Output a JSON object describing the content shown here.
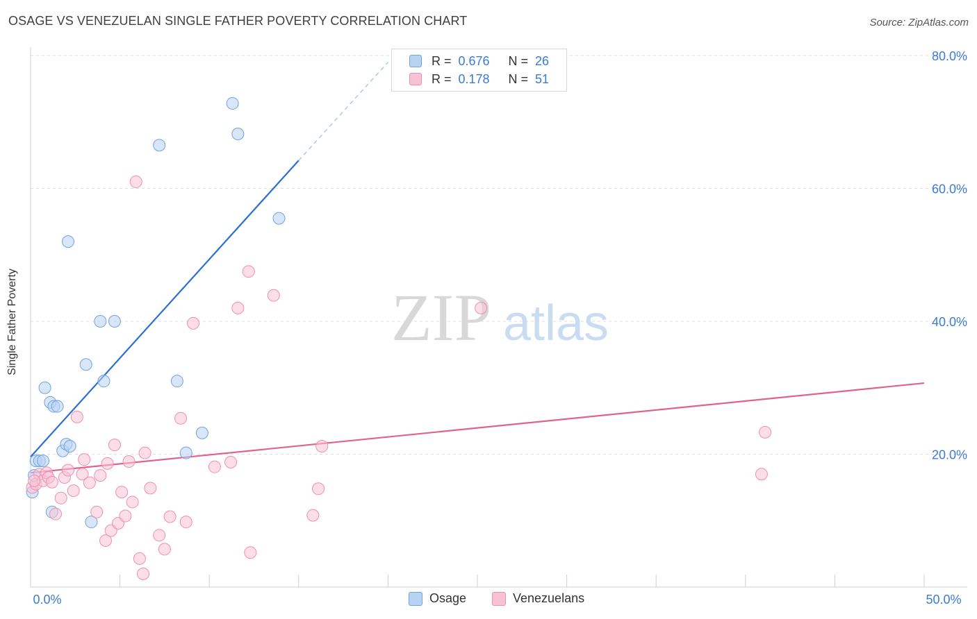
{
  "header": {
    "title": "OSAGE VS VENEZUELAN SINGLE FATHER POVERTY CORRELATION CHART",
    "source": "Source: ZipAtlas.com"
  },
  "watermark": {
    "zip": "ZIP",
    "atlas": "atlas"
  },
  "legend": {
    "r_label": "R =",
    "n_label": "N =",
    "rows": [
      {
        "r": "0.676",
        "n": "26",
        "color": "#6fa3e0"
      },
      {
        "r": "0.178",
        "n": "51",
        "color": "#ef8fb0"
      }
    ]
  },
  "bottom_legend": [
    "Osage",
    "Venezuelans"
  ],
  "chart_data": {
    "type": "scatter",
    "title": "OSAGE VS VENEZUELAN SINGLE FATHER POVERTY CORRELATION CHART",
    "xlabel": "",
    "ylabel": "Single Father Poverty",
    "xlim": [
      0,
      50
    ],
    "ylim": [
      0,
      80
    ],
    "x_tick_labels": [
      "0.0%",
      "50.0%"
    ],
    "y_tick_labels": [
      "20.0%",
      "40.0%",
      "60.0%",
      "80.0%"
    ],
    "y_ticks": [
      20,
      40,
      60,
      80
    ],
    "grid": true,
    "legend_position": "top-center",
    "series": [
      {
        "name": "Osage",
        "color": "#6fa3e0",
        "fill": "#b8d2f2",
        "points": [
          [
            0.1,
            14.3
          ],
          [
            0.2,
            16.8
          ],
          [
            0.3,
            19.0
          ],
          [
            0.5,
            19.0
          ],
          [
            0.7,
            19.0
          ],
          [
            0.8,
            30.0
          ],
          [
            1.1,
            27.8
          ],
          [
            1.3,
            27.2
          ],
          [
            1.5,
            27.2
          ],
          [
            1.2,
            11.3
          ],
          [
            1.8,
            20.5
          ],
          [
            2.0,
            21.5
          ],
          [
            2.2,
            21.2
          ],
          [
            2.1,
            52.0
          ],
          [
            3.1,
            33.5
          ],
          [
            3.4,
            9.8
          ],
          [
            3.9,
            40.0
          ],
          [
            4.1,
            31.0
          ],
          [
            4.7,
            40.0
          ],
          [
            7.2,
            66.5
          ],
          [
            8.2,
            31.0
          ],
          [
            8.7,
            20.2
          ],
          [
            9.6,
            23.2
          ],
          [
            11.3,
            72.8
          ],
          [
            11.6,
            68.2
          ],
          [
            13.9,
            55.5
          ]
        ],
        "trendline": {
          "x": [
            0,
            15
          ],
          "y": [
            19.6,
            64.2
          ],
          "dashed_to": {
            "x": 20,
            "y": 79.0
          }
        }
      },
      {
        "name": "Venezuelans",
        "color": "#ef8fb0",
        "fill": "#f7c3d4",
        "points": [
          [
            0.1,
            15.0
          ],
          [
            0.3,
            15.5
          ],
          [
            0.5,
            17.0
          ],
          [
            0.7,
            16.0
          ],
          [
            0.9,
            17.2
          ],
          [
            1.0,
            16.5
          ],
          [
            1.2,
            15.8
          ],
          [
            1.4,
            11.0
          ],
          [
            1.7,
            13.4
          ],
          [
            1.9,
            16.5
          ],
          [
            2.1,
            17.6
          ],
          [
            2.4,
            14.5
          ],
          [
            2.6,
            25.6
          ],
          [
            3.0,
            19.2
          ],
          [
            2.9,
            17.0
          ],
          [
            3.3,
            15.7
          ],
          [
            3.7,
            11.3
          ],
          [
            3.9,
            16.8
          ],
          [
            4.2,
            7.0
          ],
          [
            4.3,
            18.6
          ],
          [
            4.5,
            8.5
          ],
          [
            4.7,
            21.4
          ],
          [
            4.9,
            9.6
          ],
          [
            5.1,
            14.3
          ],
          [
            5.3,
            10.7
          ],
          [
            5.5,
            18.9
          ],
          [
            5.7,
            12.8
          ],
          [
            5.9,
            61.0
          ],
          [
            6.1,
            4.3
          ],
          [
            6.3,
            2.0
          ],
          [
            6.4,
            20.2
          ],
          [
            6.7,
            14.9
          ],
          [
            7.2,
            7.8
          ],
          [
            7.5,
            5.7
          ],
          [
            7.8,
            10.6
          ],
          [
            8.4,
            25.4
          ],
          [
            8.7,
            9.8
          ],
          [
            9.1,
            39.7
          ],
          [
            10.3,
            18.1
          ],
          [
            11.2,
            18.8
          ],
          [
            11.6,
            42.0
          ],
          [
            12.2,
            47.5
          ],
          [
            12.3,
            5.2
          ],
          [
            13.6,
            43.9
          ],
          [
            15.8,
            10.8
          ],
          [
            16.1,
            14.8
          ],
          [
            16.3,
            21.2
          ],
          [
            25.2,
            42.0
          ],
          [
            40.9,
            17.0
          ],
          [
            41.1,
            23.3
          ],
          [
            0.2,
            16.0
          ]
        ],
        "trendline": {
          "x": [
            0,
            50
          ],
          "y": [
            17.2,
            30.7
          ]
        }
      }
    ]
  }
}
